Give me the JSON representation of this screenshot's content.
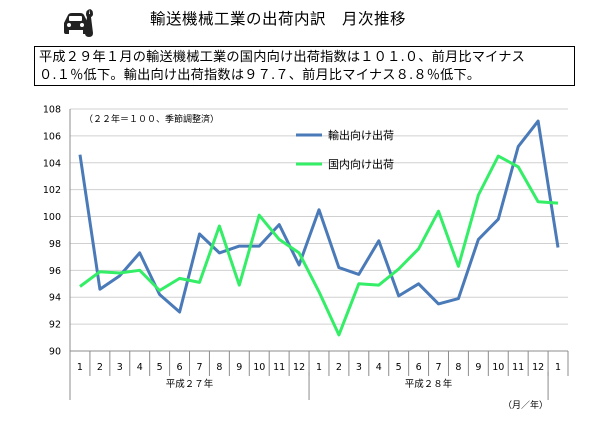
{
  "header": {
    "title": "輸送機械工業の出荷内訳　月次推移",
    "logo_icon": "car-wrench-icon"
  },
  "summary": {
    "line1": "平成２９年１月の輸送機械工業の国内向け出荷指数は１０１.０、前月比マイナス",
    "line2": "０.１％低下。輸出向け出荷指数は９７.７、前月比マイナス８.８％低下。"
  },
  "chart_data": {
    "type": "line",
    "title": "",
    "note": "（２２年＝１００、季節調整済）",
    "xlabel": "（月／年）",
    "ylabel": "",
    "ylim": [
      90,
      108
    ],
    "yticks": [
      90,
      92,
      94,
      96,
      98,
      100,
      102,
      104,
      106,
      108
    ],
    "grid": "horizontal",
    "legend_position": "top-right",
    "x": [
      "1",
      "2",
      "3",
      "4",
      "5",
      "6",
      "7",
      "8",
      "9",
      "10",
      "11",
      "12",
      "1",
      "2",
      "3",
      "4",
      "5",
      "6",
      "7",
      "8",
      "9",
      "10",
      "11",
      "12",
      "1"
    ],
    "year_groups": [
      {
        "label": "平成２７年",
        "start": 0,
        "end": 11
      },
      {
        "label": "平成２８年",
        "start": 12,
        "end": 23
      }
    ],
    "series": [
      {
        "name": "輸出向け出荷",
        "color": "#4a7ab8",
        "values": [
          104.6,
          94.6,
          95.6,
          97.3,
          94.2,
          92.9,
          98.7,
          97.3,
          97.8,
          97.8,
          99.4,
          96.4,
          100.5,
          96.2,
          95.7,
          98.2,
          94.1,
          95.0,
          93.5,
          93.9,
          98.3,
          99.8,
          105.2,
          107.1,
          97.7
        ]
      },
      {
        "name": "国内向け出荷",
        "color": "#33ee66",
        "values": [
          94.8,
          95.9,
          95.8,
          96.0,
          94.5,
          95.4,
          95.1,
          99.3,
          94.9,
          100.1,
          98.3,
          97.3,
          94.4,
          91.2,
          95.0,
          94.9,
          96.1,
          97.6,
          100.4,
          96.3,
          101.6,
          104.5,
          103.7,
          101.1,
          101.0
        ]
      }
    ]
  }
}
